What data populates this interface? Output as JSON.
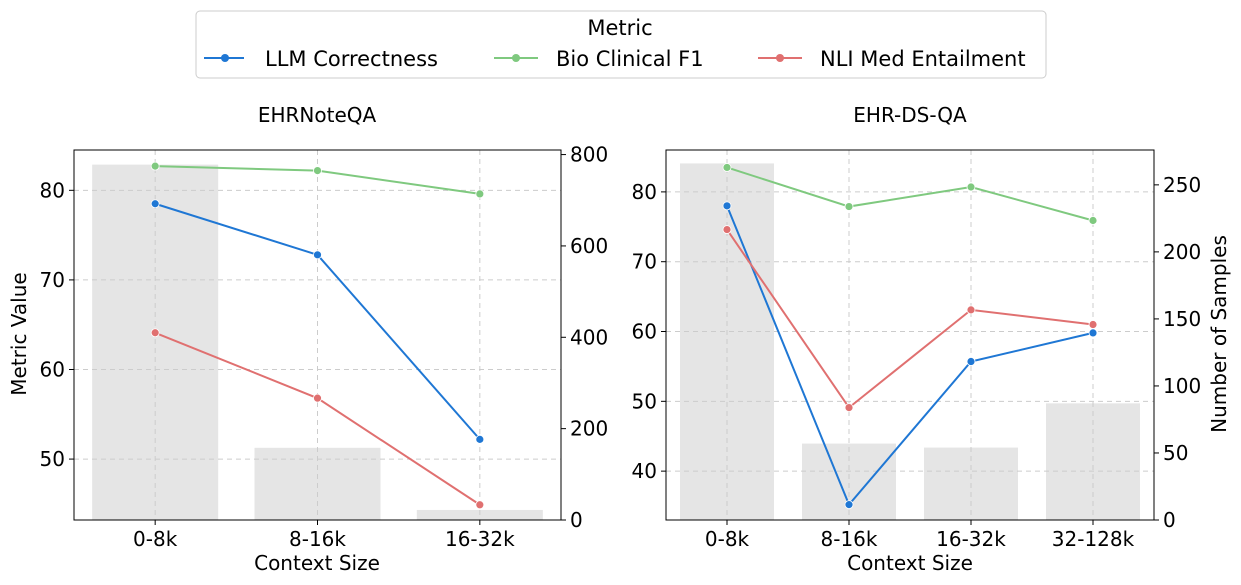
{
  "legend": {
    "title": "Metric",
    "entries": [
      {
        "name": "LLM Correctness",
        "color": "#1f77d4"
      },
      {
        "name": "Bio Clinical F1",
        "color": "#7fc97f"
      },
      {
        "name": "NLI Med Entailment",
        "color": "#e07070"
      }
    ]
  },
  "chart_data": [
    {
      "type": "line+bar",
      "title": "EHRNoteQA",
      "xlabel": "Context Size",
      "ylabel": "Metric Value",
      "y2label": "",
      "categories": [
        "0-8k",
        "8-16k",
        "16-32k"
      ],
      "ylim": [
        43.2,
        84.5
      ],
      "yticks": [
        50,
        60,
        70,
        80
      ],
      "y2lim": [
        0,
        810
      ],
      "y2ticks": [
        0,
        200,
        400,
        600,
        800
      ],
      "bars": {
        "name": "Number of Samples",
        "color": "#e5e5e5",
        "values": [
          778,
          158,
          22
        ]
      },
      "series": [
        {
          "name": "LLM Correctness",
          "color": "#1f77d4",
          "values": [
            78.5,
            72.8,
            52.2
          ]
        },
        {
          "name": "Bio Clinical F1",
          "color": "#7fc97f",
          "values": [
            82.7,
            82.2,
            79.6
          ]
        },
        {
          "name": "NLI Med Entailment",
          "color": "#e07070",
          "values": [
            64.1,
            56.8,
            44.9
          ]
        }
      ]
    },
    {
      "type": "line+bar",
      "title": "EHR-DS-QA",
      "xlabel": "Context Size",
      "ylabel": "",
      "y2label": "Number of Samples",
      "categories": [
        "0-8k",
        "8-16k",
        "16-32k",
        "32-128k"
      ],
      "ylim": [
        33.0,
        86.0
      ],
      "yticks": [
        40,
        50,
        60,
        70,
        80
      ],
      "y2lim": [
        0,
        276
      ],
      "y2ticks": [
        0,
        50,
        100,
        150,
        200,
        250
      ],
      "bars": {
        "name": "Number of Samples",
        "color": "#e5e5e5",
        "values": [
          266,
          57,
          54,
          87
        ]
      },
      "series": [
        {
          "name": "LLM Correctness",
          "color": "#1f77d4",
          "values": [
            78.0,
            35.2,
            55.7,
            59.8
          ]
        },
        {
          "name": "Bio Clinical F1",
          "color": "#7fc97f",
          "values": [
            83.5,
            77.9,
            80.7,
            75.9
          ]
        },
        {
          "name": "NLI Med Entailment",
          "color": "#e07070",
          "values": [
            74.6,
            49.1,
            63.1,
            61.0
          ]
        }
      ]
    }
  ]
}
